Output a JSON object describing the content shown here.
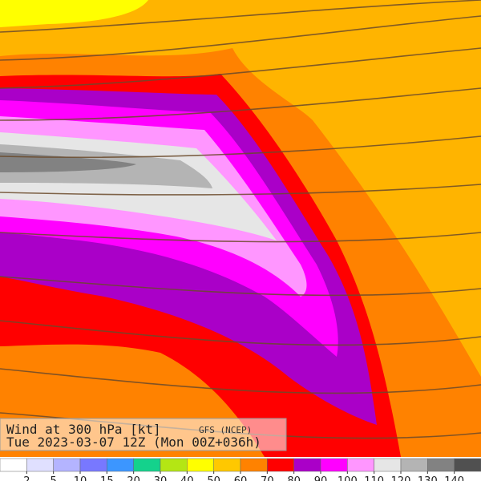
{
  "header": {
    "title": "Wind at 300 hPa [kt]",
    "source": "GFS (NCEP)",
    "valid_time": "Tue 2023-03-07 12Z (Mon 00Z+036h)"
  },
  "colorbar": {
    "colors": [
      "#ffffff",
      "#e0e0ff",
      "#b4b4ff",
      "#7878ff",
      "#3c96ff",
      "#14d28c",
      "#b4e614",
      "#ffff00",
      "#ffc800",
      "#ff8200",
      "#ff0000",
      "#aa00c8",
      "#ff00ff",
      "#ff96ff",
      "#e6e6e6",
      "#b4b4b4",
      "#828282",
      "#505050"
    ],
    "labels": [
      2,
      5,
      10,
      15,
      20,
      30,
      40,
      50,
      60,
      70,
      80,
      90,
      100,
      110,
      120,
      130,
      140
    ]
  }
}
